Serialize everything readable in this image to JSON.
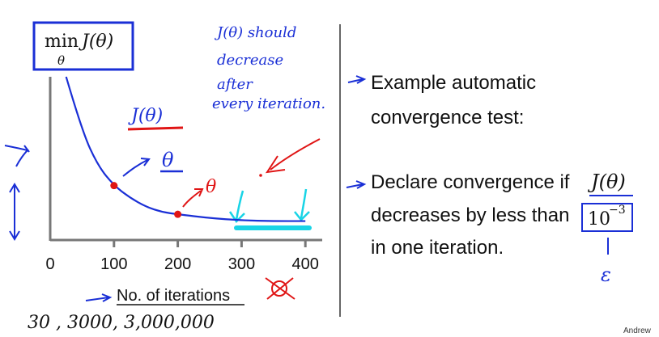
{
  "formula": {
    "min": "min",
    "sub": "θ",
    "expr": "J(θ)"
  },
  "handwritten": {
    "note_line1": "J(θ) should",
    "note_line2": "decrease",
    "note_line3": "after",
    "note_line4": "every iteration.",
    "j_theta": "J(θ)",
    "theta_1": "θ",
    "theta_2": "θ",
    "epsilon": "ε",
    "iterations_examples": "30 ,   3000,  3,000,000"
  },
  "chart_data": {
    "type": "line",
    "title": "",
    "xlabel": "No. of iterations",
    "ylabel": "",
    "xlim": [
      0,
      420
    ],
    "x_ticks": [
      "0",
      "100",
      "200",
      "300",
      "400"
    ],
    "series": [
      {
        "x": [
          25,
          50,
          75,
          100,
          125,
          150,
          175,
          200,
          250,
          300,
          350,
          400
        ],
        "y": [
          1.0,
          0.64,
          0.41,
          0.28,
          0.2,
          0.14,
          0.105,
          0.09,
          0.065,
          0.05,
          0.045,
          0.045
        ]
      }
    ],
    "highlighted_points": [
      {
        "x": 100,
        "y": 0.28
      },
      {
        "x": 200,
        "y": 0.09
      }
    ],
    "colors": {
      "curve": "#1a2fd6",
      "points": "#e01515",
      "highlight": "#18d4e6"
    }
  },
  "bullets": {
    "item1_line1": "Example automatic",
    "item1_line2": "convergence test:",
    "item2_line1": "Declare convergence if",
    "item2_math": "J(θ)",
    "item2_line2": "decreases by less than",
    "item2_threshold": "10",
    "item2_exponent": "−3",
    "item2_line3": "in one iteration."
  },
  "credit": "Andrew"
}
